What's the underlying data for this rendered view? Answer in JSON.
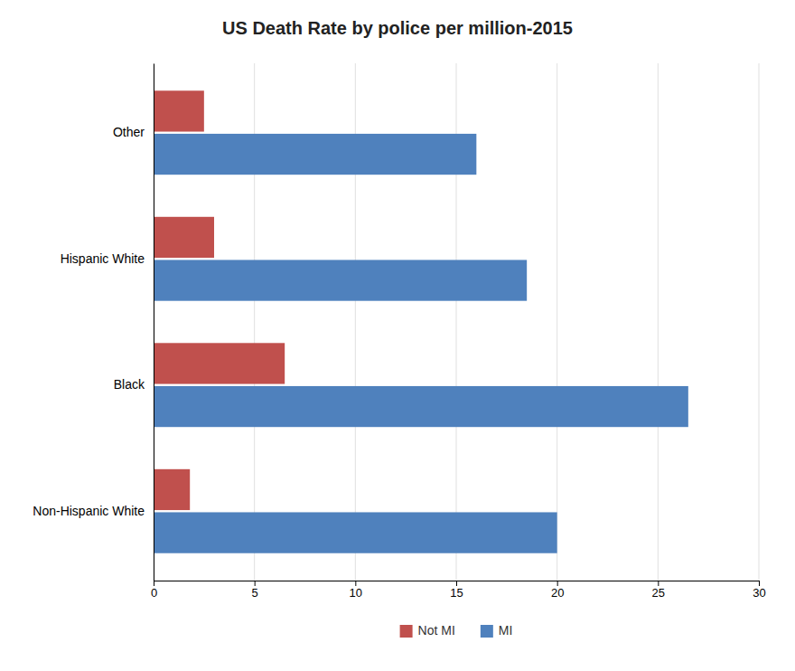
{
  "chart_data": {
    "type": "bar",
    "orientation": "horizontal",
    "title": "US Death Rate by police per million-2015",
    "categories": [
      "Non-Hispanic White",
      "Black",
      "Hispanic White",
      "Other"
    ],
    "series": [
      {
        "name": "Not MI",
        "color": "#C0504D",
        "values": [
          1.8,
          6.5,
          3.0,
          2.5
        ]
      },
      {
        "name": "MI",
        "color": "#4F81BD",
        "values": [
          20,
          26.5,
          18.5,
          16
        ]
      }
    ],
    "xlim": [
      0,
      30
    ],
    "xticks": [
      0,
      5,
      10,
      15,
      20,
      25,
      30
    ],
    "grid": true,
    "legend": "bottom"
  }
}
